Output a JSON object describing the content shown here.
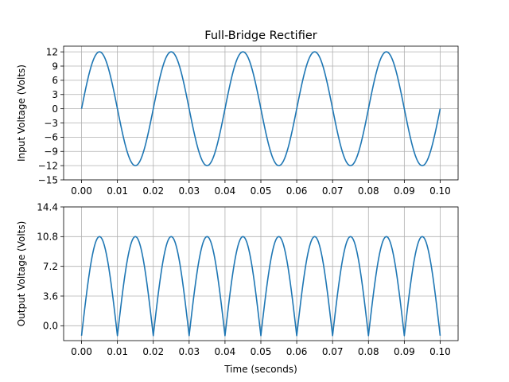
{
  "figure": {
    "title": "Full-Bridge Rectifier"
  },
  "chart_data": [
    {
      "type": "line",
      "title": "Full-Bridge Rectifier",
      "xlabel": "",
      "ylabel": "Input Voltage (Volts)",
      "xlim": [
        -0.005,
        0.105
      ],
      "ylim": [
        -15,
        13.2
      ],
      "grid": true,
      "xticks": [
        0.0,
        0.01,
        0.02,
        0.03,
        0.04,
        0.05,
        0.06,
        0.07,
        0.08,
        0.09,
        0.1
      ],
      "xtick_labels": [
        "0.00",
        "0.01",
        "0.02",
        "0.03",
        "0.04",
        "0.05",
        "0.06",
        "0.07",
        "0.08",
        "0.09",
        "0.10"
      ],
      "yticks": [
        -15,
        -12,
        -9,
        -6,
        -3,
        0,
        3,
        6,
        9,
        12
      ],
      "ytick_labels": [
        "−15",
        "−12",
        "−9",
        "−6",
        "−3",
        "0",
        "3",
        "6",
        "9",
        "12"
      ],
      "series": [
        {
          "color": "#1f77b4",
          "function": "sine",
          "amplitude": 12,
          "frequency_hz": 50,
          "x_range": [
            0,
            0.1
          ],
          "x": [
            0,
            0.0025,
            0.005,
            0.0075,
            0.01,
            0.0125,
            0.015,
            0.0175,
            0.02,
            0.0225,
            0.025,
            0.0275,
            0.03,
            0.0325,
            0.035,
            0.0375,
            0.04,
            0.0425,
            0.045,
            0.0475,
            0.05,
            0.0525,
            0.055,
            0.0575,
            0.06,
            0.0625,
            0.065,
            0.0675,
            0.07,
            0.0725,
            0.075,
            0.0775,
            0.08,
            0.0825,
            0.085,
            0.0875,
            0.09,
            0.0925,
            0.095,
            0.0975,
            0.1
          ],
          "y": [
            0,
            8.49,
            12,
            8.49,
            0,
            -8.49,
            -12,
            -8.49,
            0,
            8.49,
            12,
            8.49,
            0,
            -8.49,
            -12,
            -8.49,
            0,
            8.49,
            12,
            8.49,
            0,
            -8.49,
            -12,
            -8.49,
            0,
            8.49,
            12,
            8.49,
            0,
            -8.49,
            -12,
            -8.49,
            0,
            8.49,
            12,
            8.49,
            0,
            -8.49,
            -12,
            -8.49,
            0
          ]
        }
      ]
    },
    {
      "type": "line",
      "title": "",
      "xlabel": "Time (seconds)",
      "ylabel": "Output Voltage (Volts)",
      "xlim": [
        -0.005,
        0.105
      ],
      "ylim": [
        -1.8,
        14.4
      ],
      "grid": true,
      "xticks": [
        0.0,
        0.01,
        0.02,
        0.03,
        0.04,
        0.05,
        0.06,
        0.07,
        0.08,
        0.09,
        0.1
      ],
      "xtick_labels": [
        "0.00",
        "0.01",
        "0.02",
        "0.03",
        "0.04",
        "0.05",
        "0.06",
        "0.07",
        "0.08",
        "0.09",
        "0.10"
      ],
      "yticks": [
        0.0,
        3.6,
        7.2,
        10.8,
        14.4
      ],
      "ytick_labels": [
        "0.0",
        "3.6",
        "7.2",
        "10.8",
        "14.4"
      ],
      "series": [
        {
          "color": "#1f77b4",
          "function": "abs_sine_minus_drop",
          "amplitude": 12,
          "diode_drop": 1.2,
          "frequency_hz": 50,
          "x_range": [
            0,
            0.1
          ],
          "x": [
            0,
            0.0025,
            0.005,
            0.0075,
            0.01,
            0.0125,
            0.015,
            0.0175,
            0.02,
            0.0225,
            0.025,
            0.0275,
            0.03,
            0.0325,
            0.035,
            0.0375,
            0.04,
            0.0425,
            0.045,
            0.0475,
            0.05,
            0.0525,
            0.055,
            0.0575,
            0.06,
            0.0625,
            0.065,
            0.0675,
            0.07,
            0.0725,
            0.075,
            0.0775,
            0.08,
            0.0825,
            0.085,
            0.0875,
            0.09,
            0.0925,
            0.095,
            0.0975,
            0.1
          ],
          "y": [
            -1.2,
            7.29,
            10.8,
            7.29,
            -1.2,
            7.29,
            10.8,
            7.29,
            -1.2,
            7.29,
            10.8,
            7.29,
            -1.2,
            7.29,
            10.8,
            7.29,
            -1.2,
            7.29,
            10.8,
            7.29,
            -1.2,
            7.29,
            10.8,
            7.29,
            -1.2,
            7.29,
            10.8,
            7.29,
            -1.2,
            7.29,
            10.8,
            7.29,
            -1.2,
            7.29,
            10.8,
            7.29,
            -1.2,
            7.29,
            10.8,
            7.29,
            -1.2
          ]
        }
      ]
    }
  ]
}
